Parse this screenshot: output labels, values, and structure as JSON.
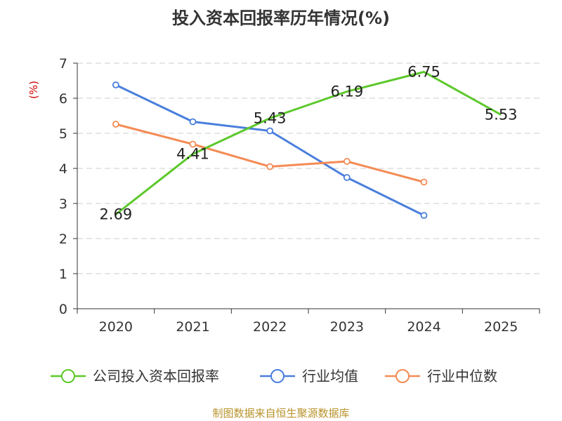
{
  "colors": {
    "grid": "#cccccc",
    "axis": "#333333",
    "source": "#b8922a",
    "ylabel": "#cc0000"
  },
  "chart_data": {
    "type": "line",
    "title": "投入资本回报率历年情况(%)",
    "ylabel": "(%)",
    "xlabel": "",
    "categories": [
      "2020",
      "2021",
      "2022",
      "2023",
      "2024",
      "2025"
    ],
    "ylim": [
      0,
      7
    ],
    "yticks": [
      "0",
      "1",
      "2",
      "3",
      "4",
      "5",
      "6",
      "7"
    ],
    "series": [
      {
        "name": "公司投入资本回报率",
        "color": "#5cc82a",
        "values": [
          2.69,
          4.41,
          5.43,
          6.19,
          6.75,
          5.53
        ],
        "labels": [
          "2.69",
          "4.41",
          "5.43",
          "6.19",
          "6.75",
          "5.53"
        ],
        "markers": false
      },
      {
        "name": "行业均值",
        "color": "#4a7fdc",
        "values": [
          6.38,
          5.33,
          5.07,
          3.74,
          2.66,
          null
        ],
        "markers": true
      },
      {
        "name": "行业中位数",
        "color": "#f48b55",
        "values": [
          5.26,
          4.69,
          4.05,
          4.2,
          3.61,
          null
        ],
        "markers": true
      }
    ],
    "legend": "bottom"
  },
  "source": "制图数据来自恒生聚源数据库"
}
